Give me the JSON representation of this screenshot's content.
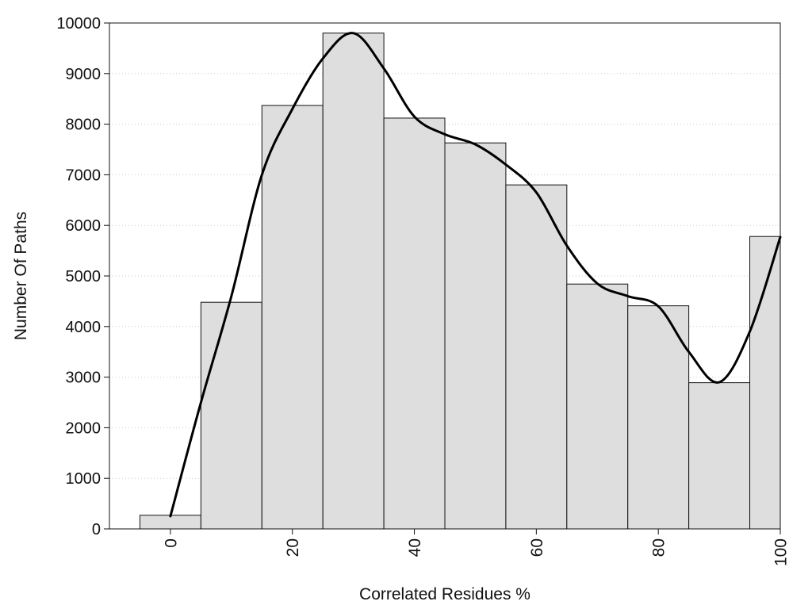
{
  "chart_data": {
    "type": "bar",
    "title": "",
    "xlabel": "Correlated Residues %",
    "ylabel": "Number Of Paths",
    "x": [
      0,
      10,
      20,
      30,
      40,
      50,
      60,
      70,
      80,
      90,
      100
    ],
    "values": [
      270,
      4480,
      8370,
      9800,
      8120,
      7630,
      6800,
      4840,
      4410,
      2890,
      5780
    ],
    "bin_width": 10,
    "xlim": [
      -10,
      100
    ],
    "ylim": [
      0,
      10000
    ],
    "xticks": [
      0,
      20,
      40,
      60,
      80,
      100
    ],
    "yticks": [
      0,
      1000,
      2000,
      3000,
      4000,
      5000,
      6000,
      7000,
      8000,
      9000,
      10000
    ],
    "curve": {
      "x": [
        0,
        5,
        10,
        15,
        20,
        25,
        30,
        35,
        40,
        45,
        50,
        55,
        60,
        65,
        70,
        75,
        80,
        85,
        90,
        95,
        100
      ],
      "y": [
        250,
        2500,
        4600,
        7000,
        8300,
        9300,
        9800,
        9100,
        8150,
        7800,
        7600,
        7200,
        6650,
        5600,
        4850,
        4600,
        4400,
        3500,
        2900,
        3900,
        5770
      ]
    },
    "grid": "horizontal-dotted",
    "colors": {
      "bar_fill": "#dedede",
      "bar_stroke": "#111111",
      "curve": "#000000",
      "grid": "#cccccc"
    }
  }
}
